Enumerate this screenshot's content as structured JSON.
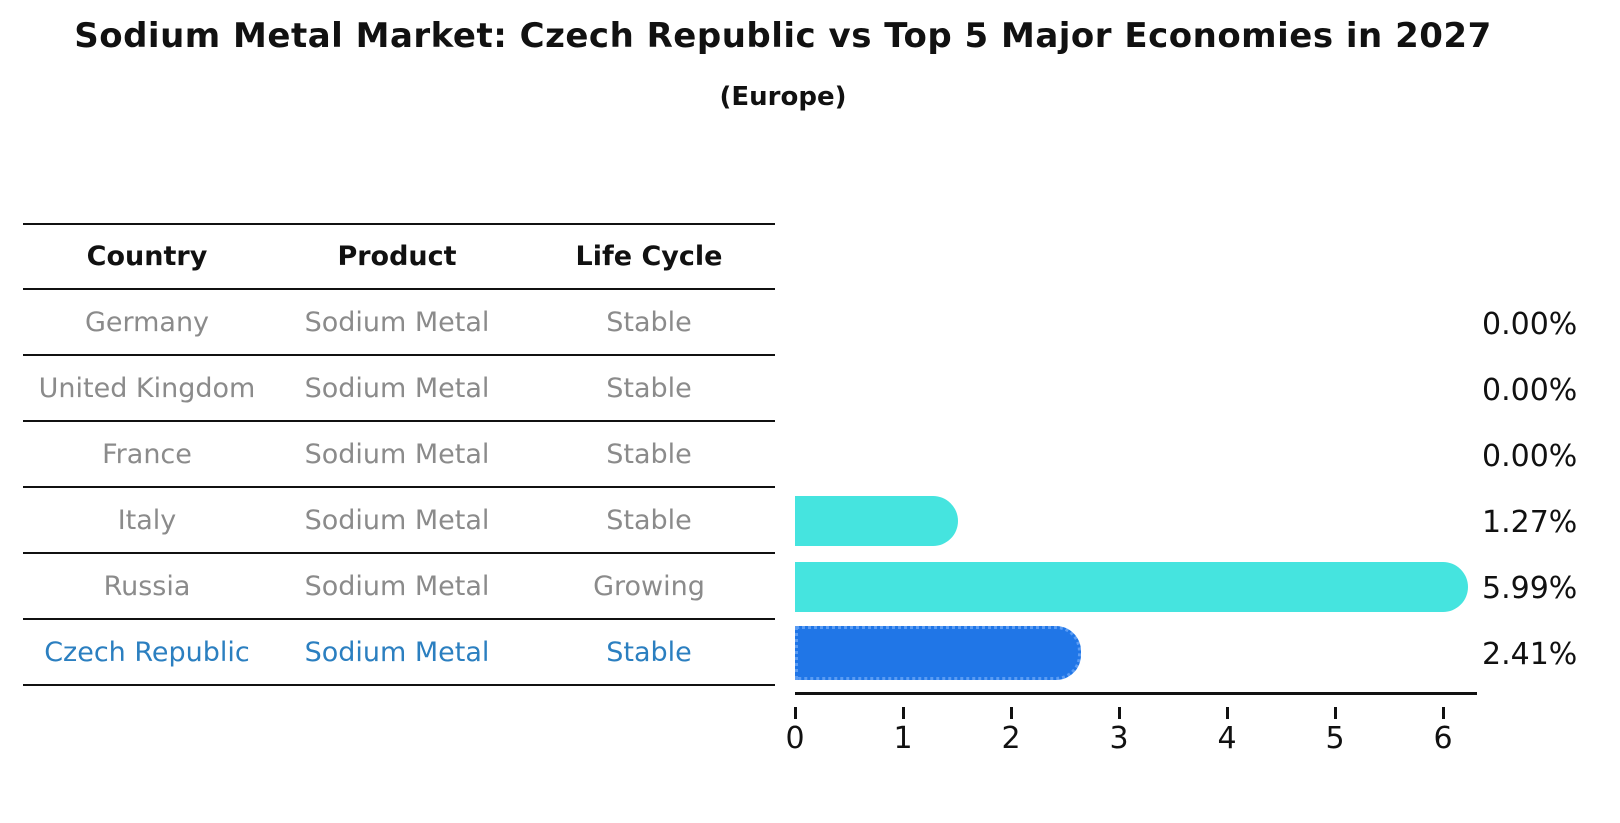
{
  "title": "Sodium Metal Market: Czech Republic vs Top 5 Major Economies in 2027",
  "subtitle": "(Europe)",
  "table": {
    "headers": [
      "Country",
      "Product",
      "Life Cycle"
    ],
    "rows": [
      {
        "country": "Germany",
        "product": "Sodium Metal",
        "life_cycle": "Stable",
        "highlight": false
      },
      {
        "country": "United Kingdom",
        "product": "Sodium Metal",
        "life_cycle": "Stable",
        "highlight": false
      },
      {
        "country": "France",
        "product": "Sodium Metal",
        "life_cycle": "Stable",
        "highlight": false
      },
      {
        "country": "Italy",
        "product": "Sodium Metal",
        "life_cycle": "Stable",
        "highlight": false
      },
      {
        "country": "Russia",
        "product": "Sodium Metal",
        "life_cycle": "Growing",
        "highlight": false
      },
      {
        "country": "Czech Republic",
        "product": "Sodium Metal",
        "life_cycle": "Stable",
        "highlight": true
      }
    ]
  },
  "chart_data": {
    "type": "bar",
    "orientation": "horizontal",
    "title": "Sodium Metal Market: Czech Republic vs Top 5 Major Economies in 2027 (Europe)",
    "categories": [
      "Germany",
      "United Kingdom",
      "France",
      "Italy",
      "Russia",
      "Czech Republic"
    ],
    "values": [
      0.0,
      0.0,
      0.0,
      1.27,
      5.99,
      2.41
    ],
    "value_labels": [
      "0.00%",
      "0.00%",
      "0.00%",
      "1.27%",
      "5.99%",
      "2.41%"
    ],
    "x_ticks": [
      0,
      1,
      2,
      3,
      4,
      5,
      6
    ],
    "xlim": [
      0,
      6.4
    ],
    "grid": false,
    "legend": false,
    "bar_color": "#45E4DF",
    "highlight_bar_color": "#2076E7",
    "highlight_text_color": "#2b7fc0",
    "highlight_index": 5
  }
}
